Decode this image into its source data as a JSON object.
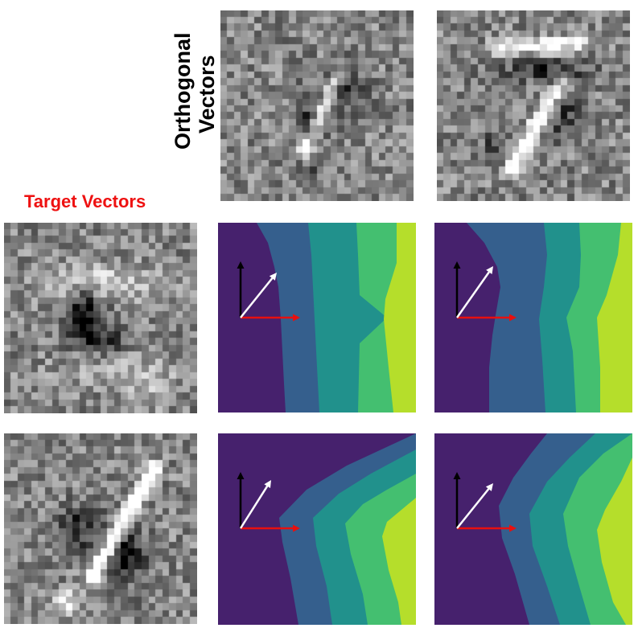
{
  "labels": {
    "orthogonal_line1": "Orthogonal",
    "orthogonal_line2": "Vectors",
    "target": "Target Vectors"
  },
  "colors": {
    "band1": "#46216d",
    "band2": "#355f8d",
    "band3": "#21918c",
    "band4": "#44bf70",
    "band5": "#b5de2b",
    "axis_vertical": "#000000",
    "axis_horizontal": "#e8100f",
    "diagonal_arrow": "#ffffff",
    "target_label": "#ee1111"
  },
  "icons": {
    "orthogonal_1": "mnist-digit-1-noise-icon",
    "orthogonal_2": "mnist-digit-7-noise-icon",
    "target_1": "mnist-digit-0-noise-icon",
    "target_2": "mnist-digit-1-slanted-noise-icon"
  }
}
